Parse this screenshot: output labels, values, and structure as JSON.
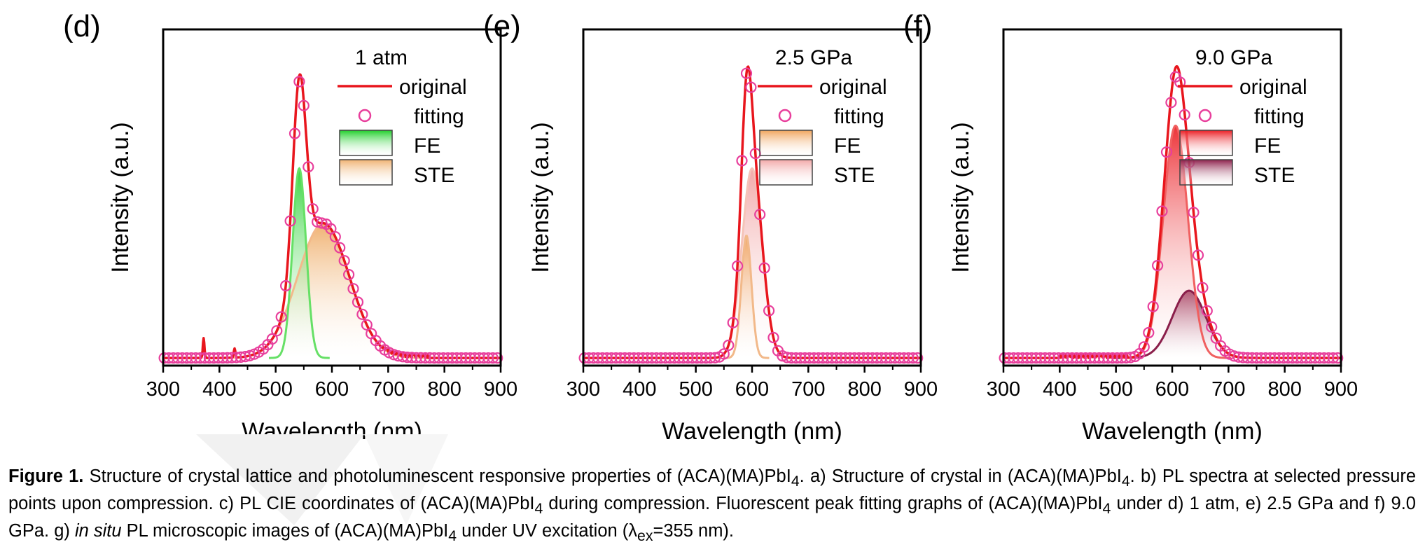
{
  "colors": {
    "original": "#e8161d",
    "fitting": "#e83f9c",
    "axis": "#000000"
  },
  "chart_data": [
    {
      "type": "line",
      "panel_label": "(d)",
      "condition": "1 atm",
      "xlabel": "Wavelength (nm)",
      "ylabel": "Intensity (a.u.)",
      "xlim": [
        300,
        900
      ],
      "ylim": [
        0,
        1.1
      ],
      "x_ticks": [
        "300",
        "400",
        "500",
        "600",
        "700",
        "800",
        "900"
      ],
      "legend": [
        "original",
        "fitting",
        "FE",
        "STE"
      ],
      "legend_position": "top-right",
      "colors": {
        "fe": "#1fcf2a",
        "fe_line": "#66e066",
        "ste": "#f0b272",
        "ste_line": "#f3b98a"
      },
      "series": [
        {
          "name": "FE",
          "kind": "gaussian",
          "center": 542,
          "sigma": 12,
          "amplitude": 0.62
        },
        {
          "name": "STE",
          "kind": "gaussian",
          "center": 585,
          "sigma": 46,
          "amplitude": 0.44
        },
        {
          "name": "fitting",
          "kind": "sum",
          "marker": "circle"
        },
        {
          "name": "original",
          "kind": "line",
          "spikes": [
            [
              372,
              0.065
            ],
            [
              427,
              0.03
            ]
          ],
          "noise_range": [
            690,
            770
          ],
          "peak_extra": 0.02
        }
      ]
    },
    {
      "type": "line",
      "panel_label": "(e)",
      "condition": "2.5 GPa",
      "xlabel": "Wavelength (nm)",
      "ylabel": "Intensity (a.u.)",
      "xlim": [
        300,
        900
      ],
      "ylim": [
        0,
        1.1
      ],
      "x_ticks": [
        "300",
        "400",
        "500",
        "600",
        "700",
        "800",
        "900"
      ],
      "legend": [
        "original",
        "fitting",
        "FE",
        "STE"
      ],
      "legend_position": "top-right",
      "colors": {
        "fe": "#f0a45c",
        "fe_line": "#f2b98a",
        "ste": "#f2a8a8",
        "ste_line": "#f5c3b8"
      },
      "series": [
        {
          "name": "FE",
          "kind": "gaussian",
          "center": 590,
          "sigma": 9,
          "amplitude": 0.4
        },
        {
          "name": "STE",
          "kind": "gaussian",
          "center": 600,
          "sigma": 18,
          "amplitude": 0.62
        },
        {
          "name": "fitting",
          "kind": "sum",
          "marker": "circle"
        },
        {
          "name": "original",
          "kind": "line",
          "spikes": [],
          "noise_range": [],
          "peak_extra": 0.0
        }
      ]
    },
    {
      "type": "line",
      "panel_label": "(f)",
      "condition": "9.0 GPa",
      "xlabel": "Wavelength (nm)",
      "ylabel": "Intensity (a.u.)",
      "xlim": [
        300,
        900
      ],
      "ylim": [
        0,
        1.1
      ],
      "x_ticks": [
        "300",
        "400",
        "500",
        "600",
        "700",
        "800",
        "900"
      ],
      "legend": [
        "original",
        "fitting",
        "FE",
        "STE"
      ],
      "legend_position": "top-right",
      "colors": {
        "fe": "#ea1c22",
        "fe_line": "#f06060",
        "ste": "#8c1f4a",
        "ste_line": "#8a1e4a"
      },
      "series": [
        {
          "name": "FE",
          "kind": "gaussian",
          "center": 606,
          "sigma": 22,
          "amplitude": 0.76
        },
        {
          "name": "STE",
          "kind": "gaussian",
          "center": 630,
          "sigma": 30,
          "amplitude": 0.22
        },
        {
          "name": "fitting",
          "kind": "sum",
          "marker": "circle"
        },
        {
          "name": "original",
          "kind": "line",
          "spikes": [],
          "noise_range": [
            400,
            520
          ],
          "peak_extra": 0.03
        }
      ]
    }
  ],
  "caption": {
    "label": "Figure 1.",
    "parts": [
      " Structure of crystal lattice and photoluminescent responsive properties of (ACA)(MA)PbI",
      "4",
      ". a) Structure of crystal in (ACA)(MA)PbI",
      "4",
      ". b) PL spectra at selected pressure points upon compression. c) PL CIE coordinates of (ACA)(MA)PbI",
      "4",
      " during compression. Fluorescent peak fitting graphs of (ACA)(MA)PbI",
      "4",
      " under d) 1 atm, e) 2.5 GPa and f) 9.0 GPa. g) ",
      "in situ",
      " PL microscopic images of (ACA)(MA)PbI",
      "4",
      " under UV excitation (λ",
      "ex",
      "=355 nm)."
    ]
  }
}
